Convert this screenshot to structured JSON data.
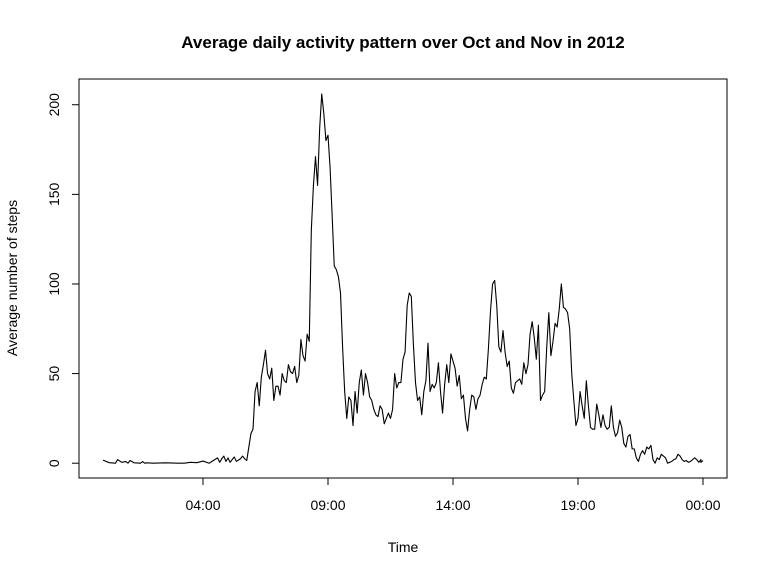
{
  "chart_data": {
    "type": "line",
    "title": "Average daily activity pattern over Oct and Nov in 2012",
    "xlabel": "Time",
    "ylabel": "Average number of steps",
    "x_unit": "hours of day (00:00 = next midnight = 24)",
    "xlim": [
      -0.96,
      24.96
    ],
    "ylim": [
      -8.25,
      214.36
    ],
    "x_ticks": [
      {
        "value": 4,
        "label": "04:00"
      },
      {
        "value": 9,
        "label": "09:00"
      },
      {
        "value": 14,
        "label": "14:00"
      },
      {
        "value": 19,
        "label": "19:00"
      },
      {
        "value": 24,
        "label": "00:00"
      }
    ],
    "y_ticks": [
      {
        "value": 0,
        "label": "0"
      },
      {
        "value": 50,
        "label": "50"
      },
      {
        "value": 100,
        "label": "100"
      },
      {
        "value": 150,
        "label": "150"
      },
      {
        "value": 200,
        "label": "200"
      }
    ],
    "grid": false,
    "series": [
      {
        "color": "#000000",
        "points": [
          [
            0.0,
            1.7
          ],
          [
            0.25,
            0.3
          ],
          [
            0.5,
            0.0
          ],
          [
            0.583,
            2.0
          ],
          [
            0.75,
            0.5
          ],
          [
            0.917,
            0.9
          ],
          [
            1.0,
            0.0
          ],
          [
            1.083,
            1.5
          ],
          [
            1.25,
            0.2
          ],
          [
            1.5,
            0.0
          ],
          [
            1.583,
            0.9
          ],
          [
            1.667,
            0.0
          ],
          [
            1.75,
            0.2
          ],
          [
            2.0,
            0.0
          ],
          [
            2.5,
            0.2
          ],
          [
            3.0,
            0.0
          ],
          [
            3.25,
            0.0
          ],
          [
            3.5,
            0.5
          ],
          [
            3.75,
            0.3
          ],
          [
            4.0,
            1.2
          ],
          [
            4.25,
            0.0
          ],
          [
            4.333,
            0.8
          ],
          [
            4.417,
            1.5
          ],
          [
            4.583,
            3.0
          ],
          [
            4.667,
            0.5
          ],
          [
            4.75,
            2.5
          ],
          [
            4.833,
            4.0
          ],
          [
            4.917,
            1.0
          ],
          [
            5.0,
            3.0
          ],
          [
            5.083,
            0.5
          ],
          [
            5.167,
            2.0
          ],
          [
            5.25,
            3.5
          ],
          [
            5.333,
            1.0
          ],
          [
            5.5,
            2.5
          ],
          [
            5.583,
            4.0
          ],
          [
            5.667,
            2.5
          ],
          [
            5.75,
            1.5
          ],
          [
            5.917,
            16.5
          ],
          [
            6.0,
            19.0
          ],
          [
            6.083,
            40.0
          ],
          [
            6.167,
            45.0
          ],
          [
            6.25,
            32.0
          ],
          [
            6.333,
            48.0
          ],
          [
            6.417,
            55.0
          ],
          [
            6.5,
            63.0
          ],
          [
            6.583,
            50.0
          ],
          [
            6.667,
            47.0
          ],
          [
            6.75,
            53.0
          ],
          [
            6.833,
            35.0
          ],
          [
            6.917,
            43.0
          ],
          [
            7.0,
            43.0
          ],
          [
            7.083,
            38.0
          ],
          [
            7.167,
            50.0
          ],
          [
            7.25,
            46.0
          ],
          [
            7.333,
            45.0
          ],
          [
            7.417,
            55.0
          ],
          [
            7.5,
            51.0
          ],
          [
            7.583,
            50.0
          ],
          [
            7.667,
            54.0
          ],
          [
            7.75,
            45.0
          ],
          [
            7.833,
            49.0
          ],
          [
            7.917,
            69.0
          ],
          [
            8.0,
            60.0
          ],
          [
            8.083,
            57.0
          ],
          [
            8.167,
            72.0
          ],
          [
            8.25,
            68.0
          ],
          [
            8.333,
            130.0
          ],
          [
            8.417,
            155.0
          ],
          [
            8.5,
            171.0
          ],
          [
            8.583,
            155.0
          ],
          [
            8.667,
            187.0
          ],
          [
            8.75,
            206.0
          ],
          [
            8.833,
            195.0
          ],
          [
            8.917,
            180.0
          ],
          [
            9.0,
            183.0
          ],
          [
            9.083,
            165.0
          ],
          [
            9.167,
            138.0
          ],
          [
            9.25,
            110.0
          ],
          [
            9.333,
            108.0
          ],
          [
            9.417,
            104.0
          ],
          [
            9.5,
            95.0
          ],
          [
            9.583,
            65.0
          ],
          [
            9.667,
            40.0
          ],
          [
            9.75,
            25.0
          ],
          [
            9.833,
            37.0
          ],
          [
            9.917,
            35.0
          ],
          [
            10.0,
            21.0
          ],
          [
            10.083,
            40.0
          ],
          [
            10.167,
            28.0
          ],
          [
            10.25,
            45.0
          ],
          [
            10.333,
            52.0
          ],
          [
            10.417,
            38.0
          ],
          [
            10.5,
            50.0
          ],
          [
            10.583,
            45.0
          ],
          [
            10.667,
            37.0
          ],
          [
            10.75,
            35.0
          ],
          [
            10.833,
            30.0
          ],
          [
            10.917,
            27.0
          ],
          [
            11.0,
            26.0
          ],
          [
            11.083,
            32.0
          ],
          [
            11.167,
            30.0
          ],
          [
            11.25,
            22.0
          ],
          [
            11.333,
            25.0
          ],
          [
            11.417,
            28.0
          ],
          [
            11.5,
            25.0
          ],
          [
            11.583,
            30.0
          ],
          [
            11.667,
            50.0
          ],
          [
            11.75,
            42.0
          ],
          [
            11.833,
            45.0
          ],
          [
            11.917,
            45.0
          ],
          [
            12.0,
            58.0
          ],
          [
            12.083,
            62.0
          ],
          [
            12.167,
            88.0
          ],
          [
            12.25,
            95.0
          ],
          [
            12.333,
            93.0
          ],
          [
            12.417,
            66.0
          ],
          [
            12.5,
            45.0
          ],
          [
            12.583,
            35.0
          ],
          [
            12.667,
            37.0
          ],
          [
            12.75,
            27.0
          ],
          [
            12.833,
            40.0
          ],
          [
            12.917,
            46.0
          ],
          [
            13.0,
            67.0
          ],
          [
            13.083,
            40.0
          ],
          [
            13.167,
            44.0
          ],
          [
            13.25,
            42.0
          ],
          [
            13.333,
            45.0
          ],
          [
            13.417,
            56.0
          ],
          [
            13.5,
            40.0
          ],
          [
            13.583,
            28.0
          ],
          [
            13.667,
            44.0
          ],
          [
            13.75,
            55.0
          ],
          [
            13.833,
            45.0
          ],
          [
            13.917,
            61.0
          ],
          [
            14.0,
            57.0
          ],
          [
            14.083,
            53.0
          ],
          [
            14.167,
            43.0
          ],
          [
            14.25,
            49.0
          ],
          [
            14.333,
            36.0
          ],
          [
            14.417,
            38.0
          ],
          [
            14.5,
            25.0
          ],
          [
            14.583,
            18.0
          ],
          [
            14.667,
            30.0
          ],
          [
            14.75,
            38.0
          ],
          [
            14.833,
            37.0
          ],
          [
            14.917,
            30.0
          ],
          [
            15.0,
            36.0
          ],
          [
            15.083,
            38.0
          ],
          [
            15.167,
            44.0
          ],
          [
            15.25,
            48.0
          ],
          [
            15.333,
            47.0
          ],
          [
            15.417,
            64.0
          ],
          [
            15.5,
            85.0
          ],
          [
            15.583,
            100.0
          ],
          [
            15.667,
            102.0
          ],
          [
            15.75,
            88.0
          ],
          [
            15.833,
            65.0
          ],
          [
            15.917,
            62.0
          ],
          [
            16.0,
            74.0
          ],
          [
            16.083,
            62.0
          ],
          [
            16.167,
            54.0
          ],
          [
            16.25,
            57.0
          ],
          [
            16.333,
            42.0
          ],
          [
            16.417,
            39.0
          ],
          [
            16.5,
            45.0
          ],
          [
            16.583,
            46.0
          ],
          [
            16.667,
            47.0
          ],
          [
            16.75,
            44.0
          ],
          [
            16.833,
            56.0
          ],
          [
            16.917,
            50.0
          ],
          [
            17.0,
            55.0
          ],
          [
            17.083,
            72.0
          ],
          [
            17.167,
            79.0
          ],
          [
            17.25,
            70.0
          ],
          [
            17.333,
            58.0
          ],
          [
            17.417,
            77.0
          ],
          [
            17.5,
            35.0
          ],
          [
            17.583,
            38.0
          ],
          [
            17.667,
            40.0
          ],
          [
            17.75,
            65.0
          ],
          [
            17.833,
            84.0
          ],
          [
            17.917,
            60.0
          ],
          [
            18.0,
            68.0
          ],
          [
            18.083,
            78.0
          ],
          [
            18.167,
            76.0
          ],
          [
            18.25,
            86.0
          ],
          [
            18.333,
            100.0
          ],
          [
            18.417,
            87.0
          ],
          [
            18.5,
            86.0
          ],
          [
            18.583,
            84.0
          ],
          [
            18.667,
            75.0
          ],
          [
            18.75,
            50.0
          ],
          [
            18.833,
            35.0
          ],
          [
            18.917,
            21.0
          ],
          [
            19.0,
            25.0
          ],
          [
            19.083,
            40.0
          ],
          [
            19.167,
            32.0
          ],
          [
            19.25,
            25.0
          ],
          [
            19.333,
            46.0
          ],
          [
            19.417,
            32.0
          ],
          [
            19.5,
            20.0
          ],
          [
            19.583,
            19.0
          ],
          [
            19.667,
            19.0
          ],
          [
            19.75,
            33.0
          ],
          [
            19.833,
            27.0
          ],
          [
            19.917,
            20.0
          ],
          [
            20.0,
            27.0
          ],
          [
            20.083,
            21.0
          ],
          [
            20.167,
            19.0
          ],
          [
            20.25,
            20.0
          ],
          [
            20.333,
            32.0
          ],
          [
            20.417,
            20.0
          ],
          [
            20.5,
            15.0
          ],
          [
            20.583,
            17.0
          ],
          [
            20.667,
            24.0
          ],
          [
            20.75,
            20.0
          ],
          [
            20.833,
            11.0
          ],
          [
            20.917,
            9.0
          ],
          [
            21.0,
            15.0
          ],
          [
            21.083,
            16.0
          ],
          [
            21.167,
            8.0
          ],
          [
            21.25,
            8.0
          ],
          [
            21.333,
            3.0
          ],
          [
            21.417,
            1.0
          ],
          [
            21.5,
            5.0
          ],
          [
            21.583,
            7.0
          ],
          [
            21.667,
            5.0
          ],
          [
            21.75,
            9.0
          ],
          [
            21.833,
            8.0
          ],
          [
            21.917,
            10.0
          ],
          [
            22.0,
            2.0
          ],
          [
            22.083,
            0.0
          ],
          [
            22.167,
            3.0
          ],
          [
            22.25,
            2.0
          ],
          [
            22.333,
            5.0
          ],
          [
            22.417,
            4.0
          ],
          [
            22.5,
            3.0
          ],
          [
            22.583,
            0.0
          ],
          [
            22.667,
            0.5
          ],
          [
            22.75,
            1.0
          ],
          [
            22.833,
            2.0
          ],
          [
            22.917,
            2.5
          ],
          [
            23.0,
            5.0
          ],
          [
            23.083,
            4.0
          ],
          [
            23.167,
            2.0
          ],
          [
            23.25,
            1.0
          ],
          [
            23.333,
            1.5
          ],
          [
            23.417,
            0.5
          ],
          [
            23.5,
            1.0
          ],
          [
            23.583,
            2.0
          ],
          [
            23.667,
            3.0
          ],
          [
            23.75,
            2.0
          ],
          [
            23.833,
            0.5
          ],
          [
            23.917,
            2.0
          ],
          [
            23.917,
            0.5
          ],
          [
            24.0,
            1.5
          ]
        ]
      }
    ]
  }
}
